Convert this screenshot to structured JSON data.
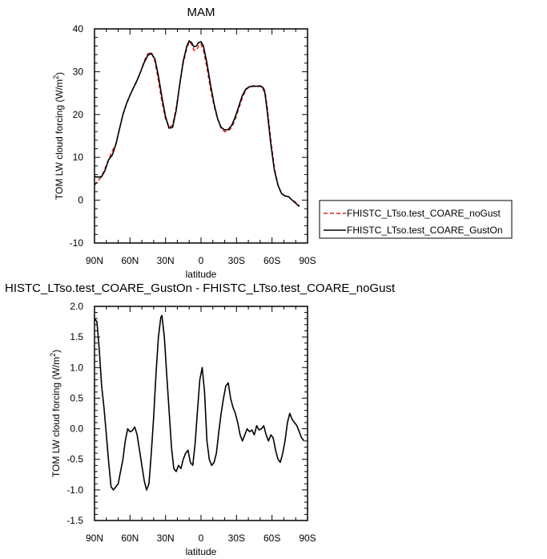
{
  "chart_data": [
    {
      "type": "line",
      "title": "MAM",
      "xlabel": "latitude",
      "ylabel": "TOM LW cloud forcing (W/m²)",
      "ylabel_main": "TOM LW cloud forcing (W/m",
      "ylabel_sup": "2",
      "ylabel_end": ")",
      "xlim": [
        90,
        -90
      ],
      "ylim": [
        -10,
        40
      ],
      "x_ticks": [
        90,
        60,
        30,
        0,
        -30,
        -60,
        -90
      ],
      "x_tick_labels": [
        "90N",
        "60N",
        "30N",
        "0",
        "30S",
        "60S",
        "90S"
      ],
      "y_ticks": [
        -10,
        0,
        10,
        20,
        30,
        40
      ],
      "y_tick_labels": [
        "-10",
        "0",
        "10",
        "20",
        "30",
        "40"
      ],
      "legend_position": "right",
      "series": [
        {
          "name": "FHISTC_LTso.test_COARE_noGust",
          "color": "#dd2222",
          "dash": "dashed",
          "points": [
            [
              90,
              3.5
            ],
            [
              87,
              4.5
            ],
            [
              84,
              5.5
            ],
            [
              81,
              7.5
            ],
            [
              78,
              9.5
            ],
            [
              75,
              11.5
            ],
            [
              72,
              13
            ],
            [
              69,
              16.5
            ],
            [
              66,
              20
            ],
            [
              63,
              22.5
            ],
            [
              60,
              24.5
            ],
            [
              57,
              26.3
            ],
            [
              54,
              28
            ],
            [
              51,
              30
            ],
            [
              48,
              32.5
            ],
            [
              45,
              34.2
            ],
            [
              42,
              34.5
            ],
            [
              39,
              32.5
            ],
            [
              36,
              28
            ],
            [
              33,
              23
            ],
            [
              30,
              19
            ],
            [
              27,
              17
            ],
            [
              24,
              17.5
            ],
            [
              21,
              21.5
            ],
            [
              18,
              27
            ],
            [
              15,
              32
            ],
            [
              12,
              35.5
            ],
            [
              10,
              37
            ],
            [
              8,
              36.5
            ],
            [
              6,
              35
            ],
            [
              4,
              35
            ],
            [
              2,
              36
            ],
            [
              0,
              36.5
            ],
            [
              -2,
              35
            ],
            [
              -5,
              31
            ],
            [
              -8,
              26
            ],
            [
              -11,
              22
            ],
            [
              -14,
              19
            ],
            [
              -17,
              16.8
            ],
            [
              -20,
              16
            ],
            [
              -23,
              16.2
            ],
            [
              -26,
              17
            ],
            [
              -29,
              19
            ],
            [
              -32,
              21.5
            ],
            [
              -35,
              24
            ],
            [
              -38,
              25.8
            ],
            [
              -41,
              26.5
            ],
            [
              -44,
              26.7
            ],
            [
              -47,
              26.7
            ],
            [
              -50,
              26.7
            ],
            [
              -52,
              26.6
            ],
            [
              -54,
              25.5
            ],
            [
              -56,
              21.5
            ],
            [
              -59,
              14
            ],
            [
              -62,
              7.5
            ],
            [
              -65,
              3.5
            ],
            [
              -68,
              1.5
            ],
            [
              -71,
              1
            ],
            [
              -74,
              0.8
            ],
            [
              -77,
              0
            ],
            [
              -80,
              -0.5
            ],
            [
              -83,
              -1.3
            ]
          ]
        },
        {
          "name": "FHISTC_LTso.test_COARE_GustOn",
          "color": "#000000",
          "dash": "solid",
          "points": [
            [
              90,
              5.5
            ],
            [
              87,
              5.4
            ],
            [
              84,
              5.5
            ],
            [
              81,
              7
            ],
            [
              78,
              9.5
            ],
            [
              75,
              10.5
            ],
            [
              72,
              13
            ],
            [
              69,
              16.5
            ],
            [
              66,
              20
            ],
            [
              63,
              22.5
            ],
            [
              60,
              24.5
            ],
            [
              57,
              26.3
            ],
            [
              54,
              28
            ],
            [
              51,
              30
            ],
            [
              48,
              32.2
            ],
            [
              45,
              33.8
            ],
            [
              42,
              34.3
            ],
            [
              39,
              33
            ],
            [
              36,
              29
            ],
            [
              33,
              24
            ],
            [
              30,
              19.5
            ],
            [
              27,
              16.8
            ],
            [
              24,
              17
            ],
            [
              21,
              21
            ],
            [
              18,
              27
            ],
            [
              15,
              32.5
            ],
            [
              12,
              36
            ],
            [
              10,
              37.2
            ],
            [
              8,
              36.8
            ],
            [
              6,
              35.8
            ],
            [
              4,
              36
            ],
            [
              2,
              36.8
            ],
            [
              0,
              37
            ],
            [
              -2,
              36
            ],
            [
              -5,
              32
            ],
            [
              -8,
              27
            ],
            [
              -11,
              22.5
            ],
            [
              -14,
              19
            ],
            [
              -17,
              17
            ],
            [
              -20,
              16.4
            ],
            [
              -23,
              16.5
            ],
            [
              -26,
              17.5
            ],
            [
              -29,
              19.5
            ],
            [
              -32,
              22
            ],
            [
              -35,
              24.5
            ],
            [
              -38,
              26
            ],
            [
              -41,
              26.5
            ],
            [
              -44,
              26.6
            ],
            [
              -47,
              26.6
            ],
            [
              -50,
              26.6
            ],
            [
              -52,
              26.4
            ],
            [
              -54,
              25
            ],
            [
              -56,
              20.5
            ],
            [
              -59,
              13
            ],
            [
              -62,
              7
            ],
            [
              -65,
              3.5
            ],
            [
              -68,
              1.6
            ],
            [
              -71,
              1
            ],
            [
              -74,
              0.8
            ],
            [
              -77,
              0
            ],
            [
              -80,
              -0.7
            ],
            [
              -83,
              -1.5
            ]
          ]
        }
      ]
    },
    {
      "type": "line",
      "title": "HISTC_LTso.test_COARE_GustOn - FHISTC_LTso.test_COARE_noGust",
      "xlabel": "latitude",
      "ylabel": "TOM LW cloud forcing (W/m²)",
      "ylabel_main": "TOM LW cloud forcing (W/m",
      "ylabel_sup": "2",
      "ylabel_end": ")",
      "xlim": [
        90,
        -90
      ],
      "ylim": [
        -1.5,
        2.0
      ],
      "x_ticks": [
        90,
        60,
        30,
        0,
        -30,
        -60,
        -90
      ],
      "x_tick_labels": [
        "90N",
        "60N",
        "30N",
        "0",
        "30S",
        "60S",
        "90S"
      ],
      "y_ticks": [
        -1.5,
        -1.0,
        -0.5,
        0.0,
        0.5,
        1.0,
        1.5,
        2.0
      ],
      "y_tick_labels": [
        "-1.5",
        "-1.0",
        "-0.5",
        "0.0",
        "0.5",
        "1.0",
        "1.5",
        "2.0"
      ],
      "series": [
        {
          "name": "",
          "color": "#000000",
          "dash": "solid",
          "points": [
            [
              90,
              1.8
            ],
            [
              88,
              1.75
            ],
            [
              86,
              1.3
            ],
            [
              84,
              0.7
            ],
            [
              82,
              0.35
            ],
            [
              80,
              -0.1
            ],
            [
              78,
              -0.55
            ],
            [
              76,
              -0.95
            ],
            [
              74,
              -1.0
            ],
            [
              72,
              -0.95
            ],
            [
              70,
              -0.9
            ],
            [
              68,
              -0.7
            ],
            [
              66,
              -0.5
            ],
            [
              64,
              -0.2
            ],
            [
              62,
              0.0
            ],
            [
              60,
              -0.05
            ],
            [
              58,
              -0.03
            ],
            [
              56,
              0.03
            ],
            [
              54,
              -0.1
            ],
            [
              52,
              -0.35
            ],
            [
              50,
              -0.6
            ],
            [
              48,
              -0.85
            ],
            [
              46,
              -1.0
            ],
            [
              44,
              -0.9
            ],
            [
              42,
              -0.4
            ],
            [
              40,
              0.2
            ],
            [
              38,
              0.9
            ],
            [
              36,
              1.5
            ],
            [
              34,
              1.82
            ],
            [
              33,
              1.85
            ],
            [
              31,
              1.5
            ],
            [
              29,
              0.9
            ],
            [
              27,
              0.3
            ],
            [
              25,
              -0.3
            ],
            [
              23,
              -0.65
            ],
            [
              21,
              -0.7
            ],
            [
              19,
              -0.6
            ],
            [
              17,
              -0.65
            ],
            [
              15,
              -0.5
            ],
            [
              13,
              -0.4
            ],
            [
              11,
              -0.35
            ],
            [
              9,
              -0.55
            ],
            [
              7,
              -0.6
            ],
            [
              5,
              -0.25
            ],
            [
              3,
              0.3
            ],
            [
              1,
              0.8
            ],
            [
              0,
              0.9
            ],
            [
              -1,
              1.0
            ],
            [
              -3,
              0.6
            ],
            [
              -5,
              -0.2
            ],
            [
              -7,
              -0.5
            ],
            [
              -9,
              -0.6
            ],
            [
              -11,
              -0.55
            ],
            [
              -13,
              -0.4
            ],
            [
              -15,
              -0.05
            ],
            [
              -17,
              0.25
            ],
            [
              -19,
              0.5
            ],
            [
              -21,
              0.7
            ],
            [
              -23,
              0.75
            ],
            [
              -25,
              0.5
            ],
            [
              -27,
              0.35
            ],
            [
              -29,
              0.25
            ],
            [
              -31,
              0.1
            ],
            [
              -33,
              -0.1
            ],
            [
              -35,
              -0.2
            ],
            [
              -37,
              -0.1
            ],
            [
              -39,
              0.0
            ],
            [
              -41,
              -0.05
            ],
            [
              -43,
              -0.02
            ],
            [
              -45,
              -0.1
            ],
            [
              -47,
              0.05
            ],
            [
              -49,
              -0.02
            ],
            [
              -51,
              0.0
            ],
            [
              -53,
              0.05
            ],
            [
              -55,
              -0.1
            ],
            [
              -57,
              -0.2
            ],
            [
              -59,
              -0.1
            ],
            [
              -61,
              -0.15
            ],
            [
              -63,
              -0.35
            ],
            [
              -65,
              -0.5
            ],
            [
              -67,
              -0.55
            ],
            [
              -69,
              -0.4
            ],
            [
              -71,
              -0.2
            ],
            [
              -73,
              0.1
            ],
            [
              -75,
              0.25
            ],
            [
              -77,
              0.15
            ],
            [
              -79,
              0.1
            ],
            [
              -81,
              0.05
            ],
            [
              -83,
              -0.05
            ],
            [
              -85,
              -0.15
            ],
            [
              -87,
              -0.2
            ]
          ]
        }
      ]
    }
  ]
}
